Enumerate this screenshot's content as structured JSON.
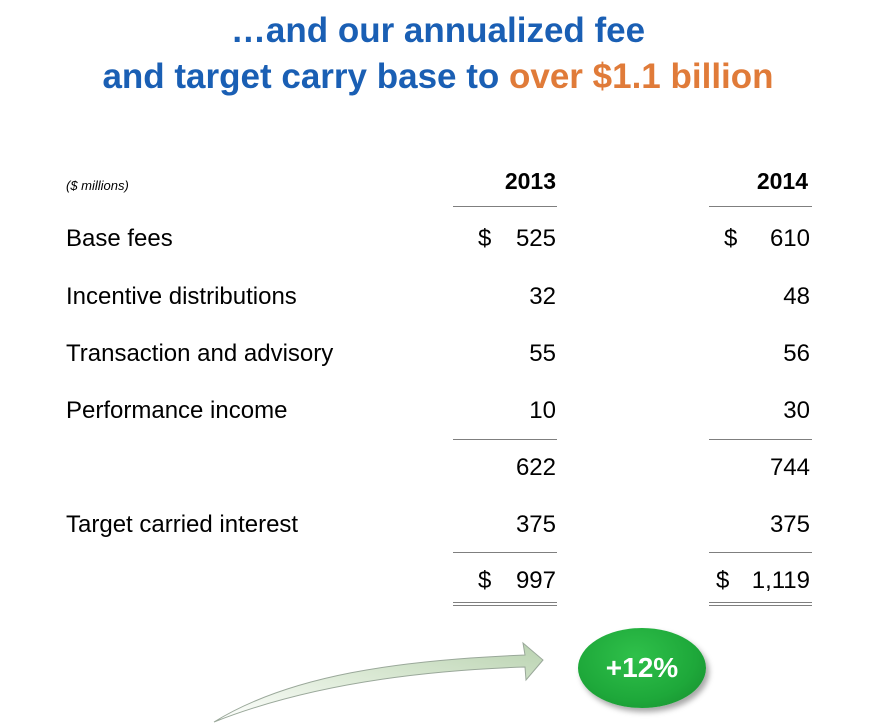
{
  "title": {
    "line1": "…and our annualized fee",
    "line2_prefix": "and target carry base to ",
    "line2_highlight": "over $1.1 billion"
  },
  "units": "($ millions)",
  "columns": [
    "2013",
    "2014"
  ],
  "rows": [
    {
      "label": "Base fees",
      "values": [
        "525",
        "610"
      ],
      "currency": [
        "$",
        "$"
      ]
    },
    {
      "label": "Incentive distributions",
      "values": [
        "32",
        "48"
      ]
    },
    {
      "label": "Transaction and advisory",
      "values": [
        "55",
        "56"
      ]
    },
    {
      "label": "Performance income",
      "values": [
        "10",
        "30"
      ]
    },
    {
      "label": "",
      "values": [
        "622",
        "744"
      ]
    },
    {
      "label": "Target carried interest",
      "values": [
        "375",
        "375"
      ]
    },
    {
      "label": "",
      "values": [
        "997",
        "1,119"
      ],
      "currency": [
        "$",
        "$"
      ]
    }
  ],
  "badge": {
    "text": "+12%"
  },
  "colors": {
    "title_blue": "#1a5fb4",
    "highlight_orange": "#e07b39",
    "badge_green": "#1ea83a",
    "rule_gray": "#7f7f7f"
  },
  "icons": {
    "growth_arrow": "curved-arrow-icon"
  }
}
